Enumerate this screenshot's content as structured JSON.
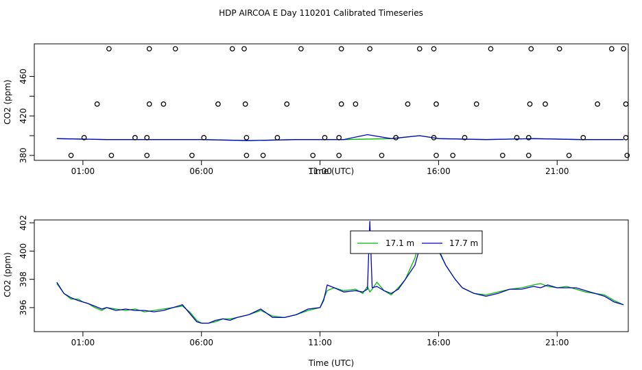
{
  "title": "HDP AIRCOA E  Day 110201  Calibrated Timeseries",
  "colors": {
    "green": "#00bb00",
    "blue": "#0000cc",
    "frame": "#000000"
  },
  "chart_data": [
    {
      "type": "scatter",
      "xlabel": "Time (UTC)",
      "ylabel": "CO2 (ppm)",
      "x_ticks": [
        {
          "v": 1,
          "label": "01:00"
        },
        {
          "v": 6,
          "label": "06:00"
        },
        {
          "v": 11,
          "label": "11:00"
        },
        {
          "v": 16,
          "label": "16:00"
        },
        {
          "v": 21,
          "label": "21:00"
        }
      ],
      "y_ticks": [
        {
          "v": 380,
          "label": "380"
        },
        {
          "v": 420,
          "label": "420"
        },
        {
          "v": 460,
          "label": "460"
        }
      ],
      "y_tick_positions": [
        380,
        400,
        420,
        440,
        460
      ],
      "xlim": [
        -1.05,
        24.0
      ],
      "ylim": [
        375.0,
        493.0
      ],
      "calibration_points": [
        [
          0.5,
          380
        ],
        [
          2.2,
          380
        ],
        [
          3.7,
          380
        ],
        [
          5.6,
          380
        ],
        [
          7.9,
          380
        ],
        [
          8.6,
          380
        ],
        [
          10.7,
          380
        ],
        [
          11.8,
          380
        ],
        [
          13.6,
          380
        ],
        [
          15.9,
          380
        ],
        [
          16.6,
          380
        ],
        [
          18.7,
          380
        ],
        [
          19.8,
          380
        ],
        [
          21.5,
          380
        ],
        [
          23.95,
          380
        ],
        [
          1.05,
          398
        ],
        [
          3.2,
          398
        ],
        [
          3.7,
          398
        ],
        [
          6.1,
          398
        ],
        [
          7.9,
          398
        ],
        [
          9.2,
          398
        ],
        [
          11.2,
          398
        ],
        [
          11.8,
          398
        ],
        [
          14.2,
          398
        ],
        [
          15.8,
          398
        ],
        [
          17.1,
          398
        ],
        [
          19.3,
          398
        ],
        [
          19.8,
          398
        ],
        [
          22.1,
          398
        ],
        [
          23.9,
          398
        ],
        [
          1.6,
          432
        ],
        [
          3.8,
          432
        ],
        [
          4.4,
          432
        ],
        [
          6.7,
          432
        ],
        [
          7.85,
          432
        ],
        [
          9.6,
          432
        ],
        [
          11.9,
          432
        ],
        [
          12.5,
          432
        ],
        [
          14.7,
          432
        ],
        [
          15.9,
          432
        ],
        [
          17.6,
          432
        ],
        [
          19.85,
          432
        ],
        [
          20.5,
          432
        ],
        [
          22.7,
          432
        ],
        [
          23.9,
          432
        ],
        [
          2.1,
          488
        ],
        [
          3.8,
          488
        ],
        [
          4.9,
          488
        ],
        [
          7.3,
          488
        ],
        [
          7.8,
          488
        ],
        [
          10.2,
          488
        ],
        [
          11.9,
          488
        ],
        [
          13.1,
          488
        ],
        [
          15.2,
          488
        ],
        [
          15.8,
          488
        ],
        [
          18.2,
          488
        ],
        [
          19.9,
          488
        ],
        [
          21.1,
          488
        ],
        [
          23.3,
          488
        ],
        [
          23.8,
          488
        ]
      ],
      "series": [
        {
          "color": "#00bb00",
          "x": [
            -0.1,
            2,
            4,
            6,
            8,
            10,
            12,
            14,
            15.2,
            16,
            18,
            20,
            22,
            23.8
          ],
          "values": [
            397,
            396,
            396,
            396,
            395,
            396,
            396,
            397,
            400,
            397,
            396,
            397,
            396,
            396
          ]
        },
        {
          "color": "#0000cc",
          "x": [
            -0.1,
            2,
            4,
            6,
            8,
            10,
            12,
            13,
            14,
            15.2,
            16,
            18,
            20,
            22,
            23.8
          ],
          "values": [
            397,
            396,
            396,
            396,
            395,
            396,
            396,
            401,
            397,
            400,
            397,
            396,
            397,
            396,
            396
          ]
        }
      ]
    },
    {
      "type": "line",
      "xlabel": "Time (UTC)",
      "ylabel": "CO2 (ppm)",
      "x_ticks": [
        {
          "v": 1,
          "label": "01:00"
        },
        {
          "v": 6,
          "label": "06:00"
        },
        {
          "v": 11,
          "label": "11:00"
        },
        {
          "v": 16,
          "label": "16:00"
        },
        {
          "v": 21,
          "label": "21:00"
        }
      ],
      "y_ticks": [
        {
          "v": 396,
          "label": "396"
        },
        {
          "v": 398,
          "label": "398"
        },
        {
          "v": 400,
          "label": "400"
        },
        {
          "v": 402,
          "label": "402"
        }
      ],
      "xlim": [
        -1.05,
        24.0
      ],
      "ylim": [
        394.3,
        402.2
      ],
      "legend_position": "top-center",
      "series": [
        {
          "name": "17.1 m",
          "color": "#00bb00",
          "x": [
            -0.1,
            0.2,
            0.5,
            0.8,
            1.0,
            1.2,
            1.5,
            1.8,
            2.0,
            2.4,
            2.8,
            3.2,
            3.6,
            4.0,
            4.4,
            4.8,
            5.2,
            5.5,
            5.8,
            6.0,
            6.3,
            6.6,
            6.9,
            7.2,
            7.5,
            8.0,
            8.5,
            9.0,
            9.5,
            10.0,
            10.5,
            11.0,
            11.15,
            11.3,
            11.6,
            12.0,
            12.5,
            12.8,
            13.0,
            13.1,
            13.2,
            13.4,
            13.7,
            14.0,
            14.3,
            14.6,
            15.0,
            15.2,
            15.35,
            15.5,
            15.8,
            16.0,
            16.3,
            16.7,
            17.0,
            17.5,
            18.0,
            18.5,
            19.0,
            19.5,
            20.0,
            20.3,
            20.6,
            21.0,
            21.4,
            21.8,
            22.2,
            22.6,
            23.0,
            23.4,
            23.8
          ],
          "values": [
            397.7,
            397.0,
            396.6,
            396.6,
            396.4,
            396.3,
            396.0,
            395.8,
            396.0,
            395.9,
            395.8,
            395.9,
            395.7,
            395.8,
            395.9,
            396.0,
            396.1,
            395.7,
            395.1,
            394.9,
            394.9,
            395.0,
            395.2,
            395.2,
            395.3,
            395.5,
            395.8,
            395.4,
            395.3,
            395.5,
            395.8,
            396.0,
            396.6,
            397.2,
            397.4,
            397.2,
            397.3,
            397.0,
            397.5,
            397.1,
            397.3,
            397.8,
            397.2,
            396.9,
            397.4,
            398.0,
            399.5,
            400.8,
            401.4,
            401.4,
            400.5,
            400.0,
            399.0,
            398.0,
            397.4,
            397.0,
            396.9,
            397.1,
            397.3,
            397.4,
            397.6,
            397.7,
            397.5,
            397.4,
            397.5,
            397.3,
            397.1,
            397.0,
            396.9,
            396.5,
            396.2
          ]
        },
        {
          "name": "17.7 m",
          "color": "#0000cc",
          "x": [
            -0.1,
            0.2,
            0.5,
            0.8,
            1.0,
            1.2,
            1.5,
            1.8,
            2.0,
            2.4,
            2.8,
            3.2,
            3.6,
            4.0,
            4.4,
            4.8,
            5.2,
            5.5,
            5.8,
            6.0,
            6.3,
            6.6,
            6.9,
            7.2,
            7.5,
            8.0,
            8.5,
            9.0,
            9.5,
            10.0,
            10.5,
            11.0,
            11.15,
            11.3,
            11.6,
            12.0,
            12.5,
            12.8,
            13.0,
            13.1,
            13.2,
            13.4,
            13.7,
            14.0,
            14.3,
            14.6,
            15.0,
            15.2,
            15.35,
            15.5,
            15.8,
            16.0,
            16.3,
            16.7,
            17.0,
            17.5,
            18.0,
            18.5,
            19.0,
            19.5,
            20.0,
            20.3,
            20.6,
            21.0,
            21.4,
            21.8,
            22.2,
            22.6,
            23.0,
            23.4,
            23.8
          ],
          "values": [
            397.8,
            397.0,
            396.7,
            396.5,
            396.4,
            396.3,
            396.1,
            395.9,
            396.0,
            395.8,
            395.9,
            395.8,
            395.8,
            395.7,
            395.8,
            396.0,
            396.2,
            395.6,
            395.0,
            394.9,
            394.9,
            395.1,
            395.2,
            395.1,
            395.3,
            395.5,
            395.9,
            395.3,
            395.3,
            395.5,
            395.9,
            396.0,
            396.5,
            397.6,
            397.4,
            397.1,
            397.2,
            397.1,
            397.3,
            402.1,
            397.4,
            397.5,
            397.2,
            397.0,
            397.3,
            398.0,
            399.0,
            400.2,
            401.0,
            401.1,
            400.6,
            400.1,
            399.0,
            398.0,
            397.4,
            397.0,
            396.8,
            397.0,
            397.3,
            397.3,
            397.5,
            397.4,
            397.6,
            397.4,
            397.4,
            397.4,
            397.2,
            397.0,
            396.8,
            396.4,
            396.2
          ]
        }
      ]
    }
  ]
}
